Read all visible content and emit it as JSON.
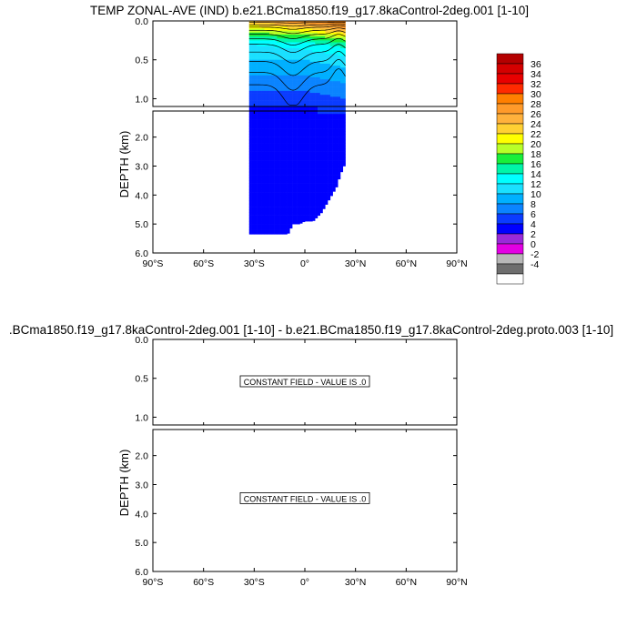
{
  "titles": {
    "top": "TEMP ZONAL-AVE (IND) b.e21.BCma1850.f19_g17.8kaControl-2deg.001 [1-10]",
    "bottom": ".BCma1850.f19_g17.8kaControl-2deg.001 [1-10] - b.e21.BCma1850.f19_g17.8kaControl-2deg.proto.003 [1-10]"
  },
  "chart_data": [
    {
      "type": "heatmap",
      "title": "TEMP ZONAL-AVE (IND) b.e21.BCma1850.f19_g17.8kaControl-2deg.001 [1-10]",
      "ylabel": "DEPTH (km)",
      "x_ticks": [
        "90°S",
        "60°S",
        "30°S",
        "0°",
        "30°N",
        "60°N",
        "90°N"
      ],
      "upper_y_ticks": [
        "0.0",
        "0.5",
        "1.0"
      ],
      "lower_y_ticks": [
        "2.0",
        "3.0",
        "4.0",
        "5.0",
        "6.0"
      ],
      "xlim": [
        -90,
        90
      ],
      "ylim_upper_km": [
        0,
        1.1
      ],
      "ylim_lower_km": [
        1.1,
        6
      ],
      "data_extent_lat": [
        -33,
        24
      ],
      "seafloor_depth_km": [
        {
          "lat": -33,
          "depth": 5.35
        },
        {
          "lat": -30,
          "depth": 5.35
        },
        {
          "lat": -25,
          "depth": 5.35
        },
        {
          "lat": -20,
          "depth": 5.35
        },
        {
          "lat": -15,
          "depth": 5.35
        },
        {
          "lat": -10,
          "depth": 5.35
        },
        {
          "lat": -7,
          "depth": 5.0
        },
        {
          "lat": -3,
          "depth": 5.0
        },
        {
          "lat": 0,
          "depth": 4.9
        },
        {
          "lat": 5,
          "depth": 4.9
        },
        {
          "lat": 10,
          "depth": 4.6
        },
        {
          "lat": 13,
          "depth": 4.3
        },
        {
          "lat": 16,
          "depth": 4.0
        },
        {
          "lat": 19,
          "depth": 3.7
        },
        {
          "lat": 21,
          "depth": 3.3
        },
        {
          "lat": 24,
          "depth": 2.9
        }
      ],
      "temperature_levels_C": [
        {
          "depth": 0.0,
          "south": 24,
          "equator": 28,
          "north": 29
        },
        {
          "depth": 0.1,
          "south": 20,
          "equator": 22,
          "north": 26
        },
        {
          "depth": 0.2,
          "south": 16,
          "equator": 17,
          "north": 20
        },
        {
          "depth": 0.3,
          "south": 12,
          "equator": 13,
          "north": 15
        },
        {
          "depth": 0.5,
          "south": 10,
          "equator": 10,
          "north": 11
        },
        {
          "depth": 0.7,
          "south": 8,
          "equator": 8,
          "north": 9
        },
        {
          "depth": 0.9,
          "south": 6,
          "equator": 6,
          "north": 7
        },
        {
          "depth": 1.1,
          "south": 4,
          "equator": 4,
          "north": 5
        },
        {
          "depth": 1.5,
          "south": 2,
          "equator": 2,
          "north": 2
        },
        {
          "depth": 6.0,
          "south": 2,
          "equator": 2,
          "north": 2
        }
      ],
      "colorbar": {
        "labels": [
          "36",
          "34",
          "32",
          "30",
          "28",
          "26",
          "24",
          "22",
          "20",
          "18",
          "16",
          "14",
          "12",
          "10",
          "8",
          "6",
          "4",
          "2",
          "0",
          "-2",
          "-4"
        ],
        "colors": [
          "#b40000",
          "#d40000",
          "#e80000",
          "#ff2a00",
          "#ff7f00",
          "#ff9a2a",
          "#ffb13c",
          "#ffd033",
          "#ffff00",
          "#b8ff28",
          "#19ef3a",
          "#00f5a8",
          "#00ffff",
          "#1ae0ff",
          "#00b0ff",
          "#0b84ff",
          "#0b3cff",
          "#0000ff",
          "#9a2ad9",
          "#e300e3",
          "#b8b8b8",
          "#6e6e6e",
          "#ffffff"
        ]
      }
    },
    {
      "type": "heatmap",
      "title": ".BCma1850.f19_g17.8kaControl-2deg.001 [1-10] - b.e21.BCma1850.f19_g17.8kaControl-2deg.proto.003 [1-10]",
      "ylabel": "DEPTH (km)",
      "x_ticks": [
        "90°S",
        "60°S",
        "30°S",
        "0°",
        "30°N",
        "60°N",
        "90°N"
      ],
      "upper_y_ticks": [
        "0.0",
        "0.5",
        "1.0"
      ],
      "lower_y_ticks": [
        "2.0",
        "3.0",
        "4.0",
        "5.0",
        "6.0"
      ],
      "annotations": [
        "CONSTANT FIELD - VALUE IS .0",
        "CONSTANT FIELD - VALUE IS .0"
      ]
    }
  ]
}
